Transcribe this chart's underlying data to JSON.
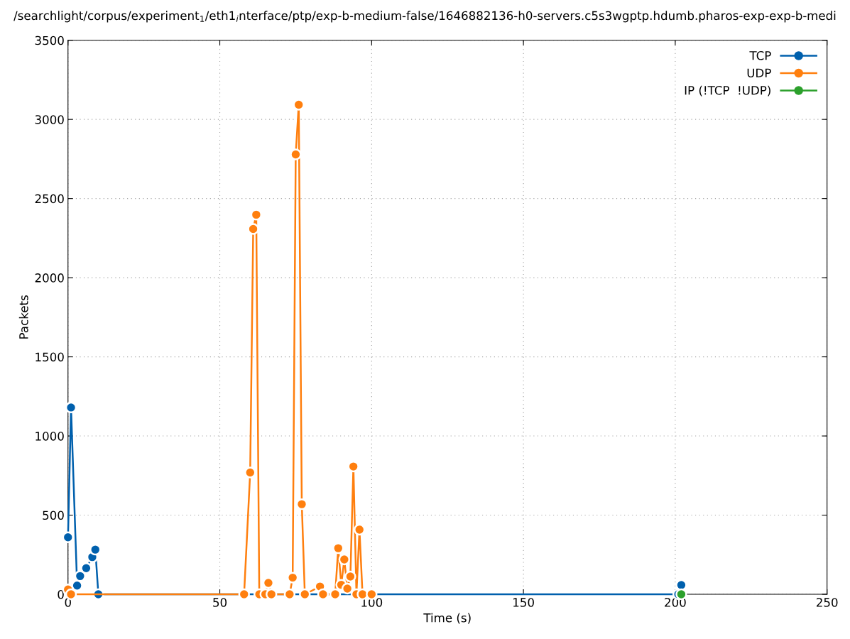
{
  "chart_data": {
    "type": "line",
    "title": "/searchlight/corpus/experiment$_{1}$/eth1$_{i}$nterface/ptp/exp-b-medium-false/1646882136-h0-servers.c5s3wgptp.hdumb.pharos-exp-exp-b-medi",
    "xlabel": "Time (s)",
    "ylabel": "Packets",
    "series": [
      {
        "name": "TCP",
        "color": "#0060ad",
        "x": [
          0,
          1,
          3,
          4,
          6,
          8,
          9,
          10,
          201,
          202
        ],
        "values": [
          360,
          1180,
          55,
          115,
          165,
          235,
          282,
          0,
          0,
          58
        ]
      },
      {
        "name": "UDP",
        "color": "#ff7f0e",
        "x": [
          0,
          1,
          58,
          60,
          61,
          62,
          63,
          65,
          66,
          67,
          73,
          74,
          75,
          76,
          77,
          78,
          83,
          84,
          88,
          89,
          90,
          91,
          92,
          93,
          94,
          95,
          96,
          97,
          100
        ],
        "values": [
          30,
          0,
          0,
          769,
          2308,
          2398,
          0,
          0,
          72,
          0,
          0,
          105,
          2779,
          3093,
          569,
          0,
          49,
          0,
          0,
          291,
          60,
          220,
          36,
          112,
          807,
          0,
          408,
          0,
          0
        ]
      },
      {
        "name": "IP (!TCP  !UDP)",
        "color": "#2ca02c",
        "x": [
          202
        ],
        "values": [
          0
        ]
      }
    ],
    "xlim": [
      0,
      250
    ],
    "xticks": [
      0,
      50,
      100,
      150,
      200,
      250
    ],
    "ylim": [
      0,
      3500
    ],
    "yticks": [
      0,
      500,
      1000,
      1500,
      2000,
      2500,
      3000,
      3500
    ],
    "grid": true,
    "legend": "top right",
    "marker": "circle",
    "line_style": "solid"
  }
}
